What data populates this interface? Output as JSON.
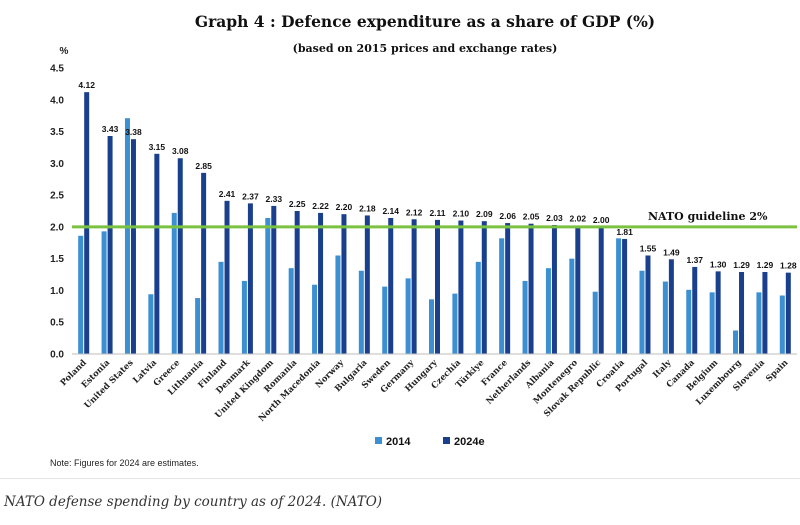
{
  "chart_data": {
    "type": "bar",
    "title": "Graph 4 : Defence expenditure as a share of GDP (%)",
    "subtitle": "(based on 2015 prices and exchange rates)",
    "ylabel": "%",
    "ylim": [
      0,
      4.5
    ],
    "yticks": [
      "0.0",
      "0.5",
      "1.0",
      "1.5",
      "2.0",
      "2.5",
      "3.0",
      "3.5",
      "4.0",
      "4.5"
    ],
    "categories": [
      "Poland",
      "Estonia",
      "United States",
      "Latvia",
      "Greece",
      "Lithuania",
      "Finland",
      "Denmark",
      "United Kingdom",
      "Romania",
      "North Macedonia",
      "Norway",
      "Bulgaria",
      "Sweden",
      "Germany",
      "Hungary",
      "Czechia",
      "Türkiye",
      "France",
      "Netherlands",
      "Albania",
      "Montenegro",
      "Slovak Republic",
      "Croatia",
      "Portugal",
      "Italy",
      "Canada",
      "Belgium",
      "Luxembourg",
      "Slovenia",
      "Spain"
    ],
    "series": [
      {
        "name": "2014",
        "color": "#3c8fd0",
        "values": [
          1.86,
          1.93,
          3.71,
          0.94,
          2.22,
          0.88,
          1.45,
          1.15,
          2.14,
          1.35,
          1.09,
          1.55,
          1.31,
          1.06,
          1.19,
          0.86,
          0.95,
          1.45,
          1.82,
          1.15,
          1.35,
          1.5,
          0.98,
          1.82,
          1.31,
          1.14,
          1.01,
          0.97,
          0.37,
          0.97,
          0.92
        ]
      },
      {
        "name": "2024e",
        "color": "#1a3f8c",
        "values": [
          4.12,
          3.43,
          3.38,
          3.15,
          3.08,
          2.85,
          2.41,
          2.37,
          2.33,
          2.25,
          2.22,
          2.2,
          2.18,
          2.14,
          2.12,
          2.11,
          2.1,
          2.09,
          2.06,
          2.05,
          2.03,
          2.02,
          2.0,
          1.81,
          1.55,
          1.49,
          1.37,
          1.3,
          1.29,
          1.29,
          1.28
        ]
      }
    ],
    "data_labels": [
      "4.12",
      "3.43",
      "3.38",
      "3.15",
      "3.08",
      "2.85",
      "2.41",
      "2.37",
      "2.33",
      "2.25",
      "2.22",
      "2.20",
      "2.18",
      "2.14",
      "2.12",
      "2.11",
      "2.10",
      "2.09",
      "2.06",
      "2.05",
      "2.03",
      "2.02",
      "2.00",
      "1.81",
      "1.55",
      "1.49",
      "1.37",
      "1.30",
      "1.29",
      "1.29",
      "1.28"
    ],
    "guideline": {
      "value": 2.0,
      "label": "NATO guideline 2%",
      "color": "#7cc242"
    },
    "legend": {
      "placement": "bottom-center",
      "items": [
        "2014",
        "2024e"
      ]
    },
    "note": "Note: Figures for 2024 are estimates."
  },
  "caption": "NATO defense spending by country as of 2024. (NATO)"
}
